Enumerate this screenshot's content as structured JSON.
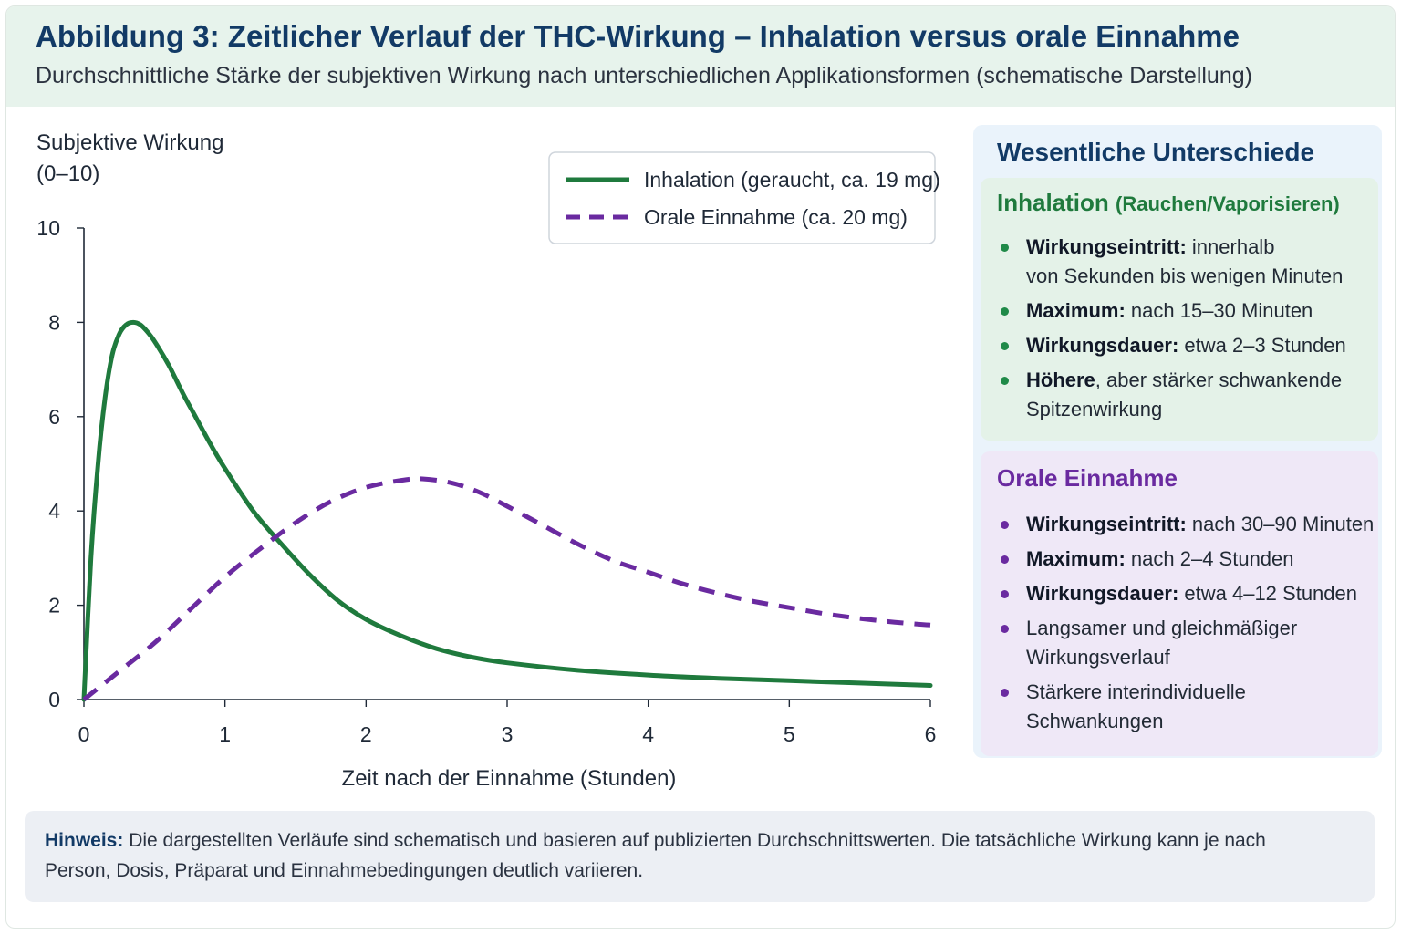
{
  "header": {
    "title": "Abbildung 3: Zeitlicher Verlauf der THC-Wirkung – Inhalation versus orale Einnahme",
    "subtitle": "Durchschnittliche Stärke der subjektiven Wirkung nach unterschiedlichen Applikationsformen (schematische Darstellung)"
  },
  "chart_data": {
    "type": "line",
    "ylabel_line1": "Subjektive Wirkung",
    "ylabel_line2": "(0–10)",
    "xlabel": "Zeit nach der Einnahme (Stunden)",
    "xlim": [
      0,
      6
    ],
    "ylim": [
      0,
      10
    ],
    "xticks": [
      0,
      1,
      2,
      3,
      4,
      5,
      6
    ],
    "yticks": [
      0,
      2,
      4,
      6,
      8,
      10
    ],
    "grid": false,
    "legend_position": "top-right",
    "series": [
      {
        "name": "Inhalation (geraucht, ca. 19 mg)",
        "color": "#1f7a3d",
        "style": "solid",
        "x": [
          0,
          0.05,
          0.1,
          0.15,
          0.2,
          0.25,
          0.3,
          0.35,
          0.4,
          0.45,
          0.5,
          0.6,
          0.7,
          0.8,
          0.9,
          1.0,
          1.2,
          1.4,
          1.6,
          1.8,
          2.0,
          2.25,
          2.5,
          2.75,
          3.0,
          3.5,
          4.0,
          4.5,
          5.0,
          5.5,
          6.0
        ],
        "y": [
          0,
          3.0,
          5.0,
          6.4,
          7.3,
          7.75,
          7.95,
          8.0,
          7.95,
          7.8,
          7.6,
          7.1,
          6.5,
          5.95,
          5.4,
          4.9,
          4.0,
          3.3,
          2.65,
          2.1,
          1.7,
          1.35,
          1.08,
          0.9,
          0.78,
          0.62,
          0.52,
          0.45,
          0.4,
          0.35,
          0.3
        ]
      },
      {
        "name": "Orale Einnahme (ca. 20 mg)",
        "color": "#6a2aa0",
        "style": "dashed",
        "x": [
          0,
          0.25,
          0.5,
          0.75,
          1.0,
          1.25,
          1.5,
          1.75,
          2.0,
          2.25,
          2.4,
          2.6,
          2.8,
          3.0,
          3.25,
          3.5,
          3.75,
          4.0,
          4.25,
          4.5,
          4.75,
          5.0,
          5.25,
          5.5,
          5.75,
          6.0
        ],
        "y": [
          0,
          0.6,
          1.2,
          1.9,
          2.6,
          3.2,
          3.75,
          4.2,
          4.5,
          4.65,
          4.68,
          4.6,
          4.4,
          4.1,
          3.7,
          3.3,
          2.95,
          2.7,
          2.45,
          2.25,
          2.08,
          1.95,
          1.82,
          1.72,
          1.64,
          1.58
        ]
      }
    ]
  },
  "sidebar": {
    "title": "Wesentliche Unterschiede",
    "inhalation": {
      "heading": "Inhalation",
      "heading_sub": "(Rauchen/Vaporisieren)",
      "items": [
        {
          "bold": "Wirkungseintritt:",
          "text": " innerhalb",
          "line2": "von Sekunden bis wenigen Minuten"
        },
        {
          "bold": "Maximum:",
          "text": " nach 15–30 Minuten"
        },
        {
          "bold": "Wirkungsdauer:",
          "text": " etwa 2–3 Stunden"
        },
        {
          "bold": "Höhere",
          "text": ", aber stärker schwankende",
          "line2": "Spitzenwirkung"
        }
      ]
    },
    "oral": {
      "heading": "Orale Einnahme",
      "items": [
        {
          "bold": "Wirkungseintritt:",
          "text": " nach 30–90 Minuten"
        },
        {
          "bold": "Maximum:",
          "text": " nach 2–4 Stunden"
        },
        {
          "bold": "Wirkungsdauer:",
          "text": " etwa 4–12 Stunden"
        },
        {
          "text": "Langsamer und gleichmäßiger",
          "line2": "Wirkungsverlauf"
        },
        {
          "text": "Stärkere interindividuelle",
          "line2": "Schwankungen"
        }
      ]
    }
  },
  "note": {
    "label": "Hinweis:",
    "text": " Die dargestellten Verläufe sind schematisch und basieren auf publizierten Durchschnittswerten. Die tatsächliche Wirkung kann je nach Person, Dosis, Präparat und Einnahmebedingungen deutlich variieren."
  }
}
